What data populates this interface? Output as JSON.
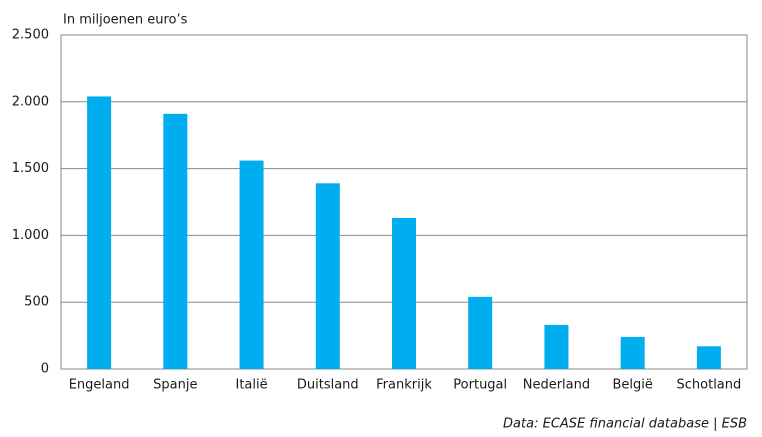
{
  "chart_data": {
    "type": "bar",
    "title": "In miljoenen euro’s",
    "categories": [
      "Engeland",
      "Spanje",
      "Italië",
      "Duitsland",
      "Frankrijk",
      "Portugal",
      "Nederland",
      "België",
      "Schotland"
    ],
    "values": [
      2040,
      1910,
      1560,
      1390,
      1130,
      540,
      330,
      240,
      170
    ],
    "color": "#00aeef",
    "ylim": [
      0,
      2500
    ],
    "yticks": [
      0,
      {
        "value": 500,
        "label": "500"
      },
      {
        "value": 1000,
        "label": "1.000"
      },
      {
        "value": 1500,
        "label": "1.500"
      },
      {
        "value": 2000,
        "label": "2.000"
      },
      {
        "value": 2500,
        "label": "2.500"
      }
    ],
    "grid": true,
    "source": "Data: ECASE financial database  | ESB"
  }
}
